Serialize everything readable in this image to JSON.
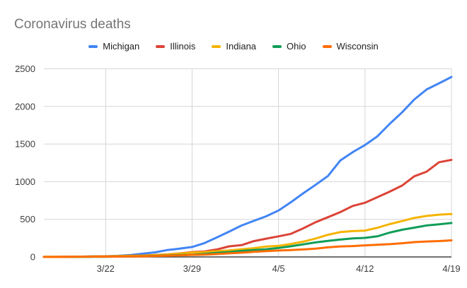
{
  "chart_data": {
    "type": "line",
    "title": "Coronavirus deaths",
    "xlabel": "",
    "ylabel": "",
    "ylim": [
      0,
      2500
    ],
    "y_ticks": [
      0,
      500,
      1000,
      1500,
      2000,
      2500
    ],
    "grid": true,
    "legend_position": "top",
    "x": [
      "3/17",
      "3/18",
      "3/19",
      "3/20",
      "3/21",
      "3/22",
      "3/23",
      "3/24",
      "3/25",
      "3/26",
      "3/27",
      "3/28",
      "3/29",
      "3/30",
      "3/31",
      "4/1",
      "4/2",
      "4/3",
      "4/4",
      "4/5",
      "4/6",
      "4/7",
      "4/8",
      "4/9",
      "4/10",
      "4/11",
      "4/12",
      "4/13",
      "4/14",
      "4/15",
      "4/16",
      "4/17",
      "4/18",
      "4/19"
    ],
    "x_tick_labels": [
      "3/22",
      "3/29",
      "4/5",
      "4/12",
      "4/19"
    ],
    "series": [
      {
        "name": "Michigan",
        "color": "#4285F4",
        "values": [
          0,
          1,
          3,
          4,
          8,
          9,
          15,
          24,
          43,
          61,
          92,
          111,
          132,
          184,
          259,
          337,
          417,
          479,
          540,
          617,
          727,
          845,
          959,
          1076,
          1281,
          1392,
          1487,
          1602,
          1768,
          1921,
          2093,
          2227,
          2308,
          2391
        ]
      },
      {
        "name": "Illinois",
        "color": "#DB4437",
        "values": [
          1,
          1,
          4,
          5,
          6,
          9,
          12,
          16,
          19,
          26,
          34,
          47,
          65,
          73,
          99,
          141,
          157,
          210,
          243,
          274,
          307,
          380,
          462,
          528,
          596,
          677,
          720,
          794,
          868,
          948,
          1072,
          1134,
          1259,
          1290
        ]
      },
      {
        "name": "Indiana",
        "color": "#F4B400",
        "values": [
          2,
          2,
          3,
          4,
          7,
          7,
          12,
          14,
          17,
          24,
          32,
          45,
          58,
          65,
          78,
          86,
          102,
          116,
          139,
          147,
          173,
          203,
          245,
          295,
          330,
          343,
          350,
          387,
          436,
          477,
          519,
          545,
          562,
          570
        ]
      },
      {
        "name": "Ohio",
        "color": "#0F9D58",
        "values": [
          0,
          0,
          0,
          1,
          2,
          3,
          6,
          7,
          9,
          15,
          19,
          25,
          29,
          39,
          55,
          65,
          81,
          91,
          102,
          119,
          142,
          167,
          193,
          213,
          231,
          247,
          253,
          274,
          324,
          361,
          389,
          418,
          434,
          451
        ]
      },
      {
        "name": "Wisconsin",
        "color": "#FF6D01",
        "values": [
          0,
          0,
          1,
          3,
          4,
          4,
          5,
          7,
          8,
          13,
          17,
          22,
          27,
          31,
          38,
          48,
          56,
          68,
          77,
          85,
          92,
          99,
          111,
          128,
          140,
          144,
          154,
          161,
          170,
          182,
          197,
          205,
          211,
          220
        ]
      }
    ],
    "colors": {
      "title_text": "#757575",
      "legend_text": "#212121",
      "tick_text": "#3c3c3c",
      "gridline": "#d5d5d5",
      "axis_line": "#424242",
      "background": "#ffffff"
    }
  }
}
